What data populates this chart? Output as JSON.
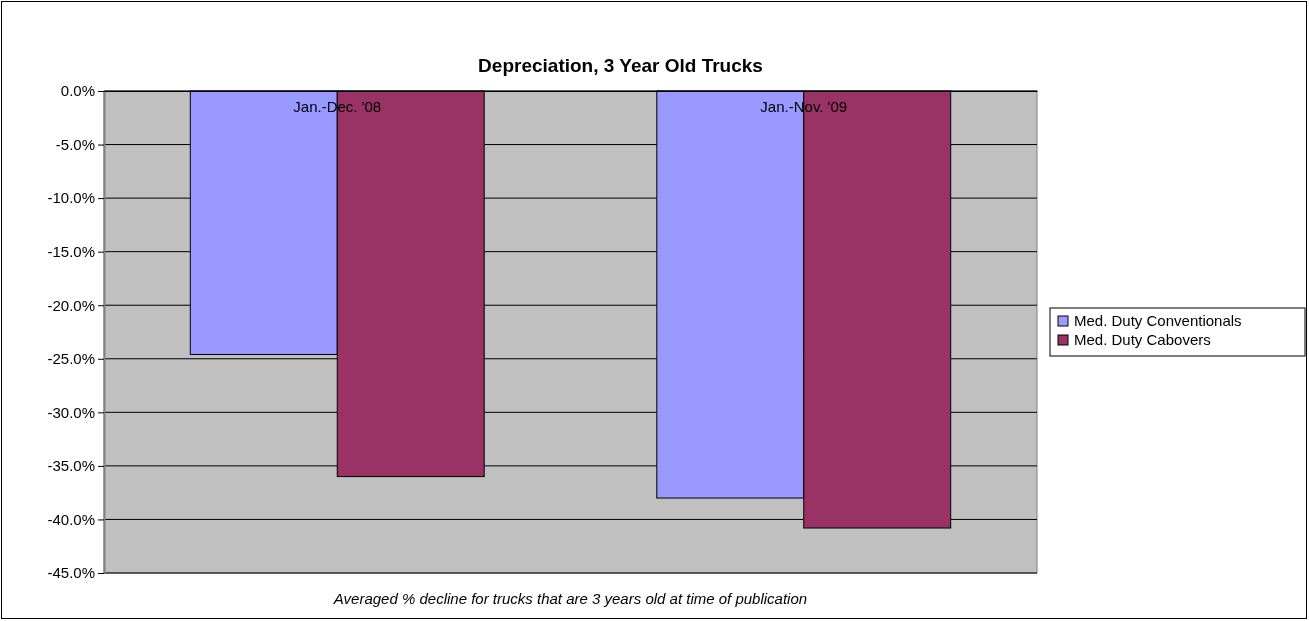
{
  "chart_data": {
    "type": "bar",
    "title": "Depreciation, 3 Year Old Trucks",
    "categories": [
      "Jan.-Dec. '08",
      "Jan.-Nov. '09"
    ],
    "series": [
      {
        "name": "Med. Duty Conventionals",
        "color": "#9999ff",
        "values": [
          -24.6,
          -38.0
        ]
      },
      {
        "name": "Med. Duty Cabovers",
        "color": "#993366",
        "values": [
          -36.0,
          -40.8
        ]
      }
    ],
    "ylim": [
      -45,
      0
    ],
    "yticks": [
      {
        "value": 0,
        "label": "0.0%"
      },
      {
        "value": -5,
        "label": "-5.0%"
      },
      {
        "value": -10,
        "label": "-10.0%"
      },
      {
        "value": -15,
        "label": "-15.0%"
      },
      {
        "value": -20,
        "label": "-20.0%"
      },
      {
        "value": -25,
        "label": "-25.0%"
      },
      {
        "value": -30,
        "label": "-30.0%"
      },
      {
        "value": -35,
        "label": "-35.0%"
      },
      {
        "value": -40,
        "label": "-40.0%"
      },
      {
        "value": -45,
        "label": "-45.0%"
      }
    ],
    "grid": "y",
    "legend": "right",
    "annotations": [
      "Averaged % decline for trucks that are 3 years old at time of publication"
    ]
  }
}
